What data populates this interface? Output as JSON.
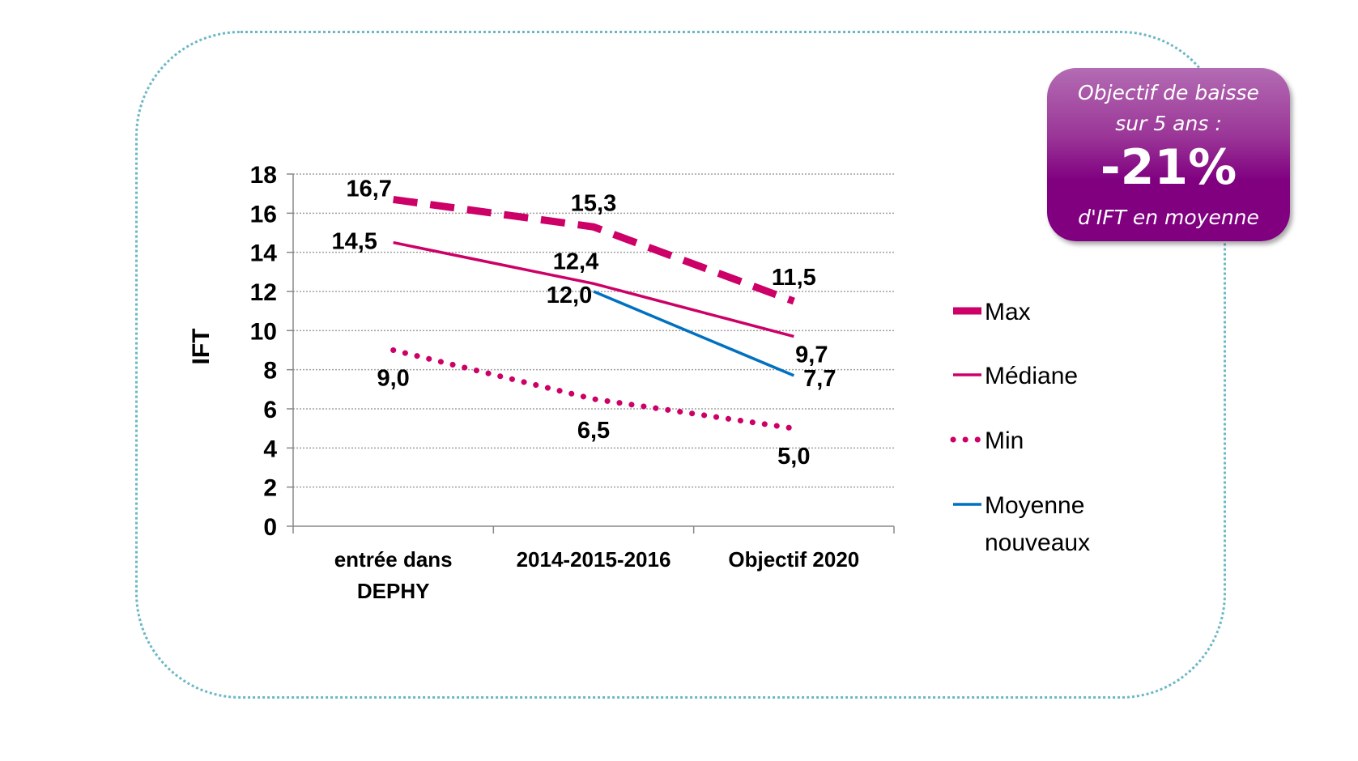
{
  "chart_data": {
    "type": "line",
    "categories": [
      "entrée dans DEPHY",
      "2014-2015-2016",
      "Objectif 2020"
    ],
    "category_lines": [
      [
        "entrée dans",
        "DEPHY"
      ],
      [
        "2014-2015-2016"
      ],
      [
        "Objectif 2020"
      ]
    ],
    "ylabel": "IFT",
    "ylim": [
      0,
      18
    ],
    "yticks": [
      "0",
      "2",
      "4",
      "6",
      "8",
      "10",
      "12",
      "14",
      "16",
      "18"
    ],
    "grid": true,
    "legend_position": "right",
    "series": [
      {
        "name": "Max",
        "values": [
          16.7,
          15.3,
          11.5
        ],
        "labels": [
          "16,7",
          "15,3",
          "11,5"
        ],
        "color": "#cc0066",
        "style": "dashed"
      },
      {
        "name": "Médiane",
        "values": [
          14.5,
          12.4,
          9.7
        ],
        "labels": [
          "14,5",
          "12,4",
          "9,7"
        ],
        "color": "#cc0066",
        "style": "solid"
      },
      {
        "name": "Min",
        "values": [
          9.0,
          6.5,
          5.0
        ],
        "labels": [
          "9,0",
          "6,5",
          "5,0"
        ],
        "color": "#cc0066",
        "style": "dotted"
      },
      {
        "name": "Moyenne nouveaux",
        "name_lines": [
          "Moyenne",
          "nouveaux"
        ],
        "values": [
          null,
          12.0,
          7.7
        ],
        "labels": [
          null,
          "12,0",
          "7,7"
        ],
        "color": "#0070c0",
        "style": "solid"
      }
    ]
  },
  "callout": {
    "line1": "Objectif de baisse",
    "line2": "sur 5 ans :",
    "value": "-21%",
    "line3": "d'IFT en moyenne",
    "color": "#800080"
  }
}
